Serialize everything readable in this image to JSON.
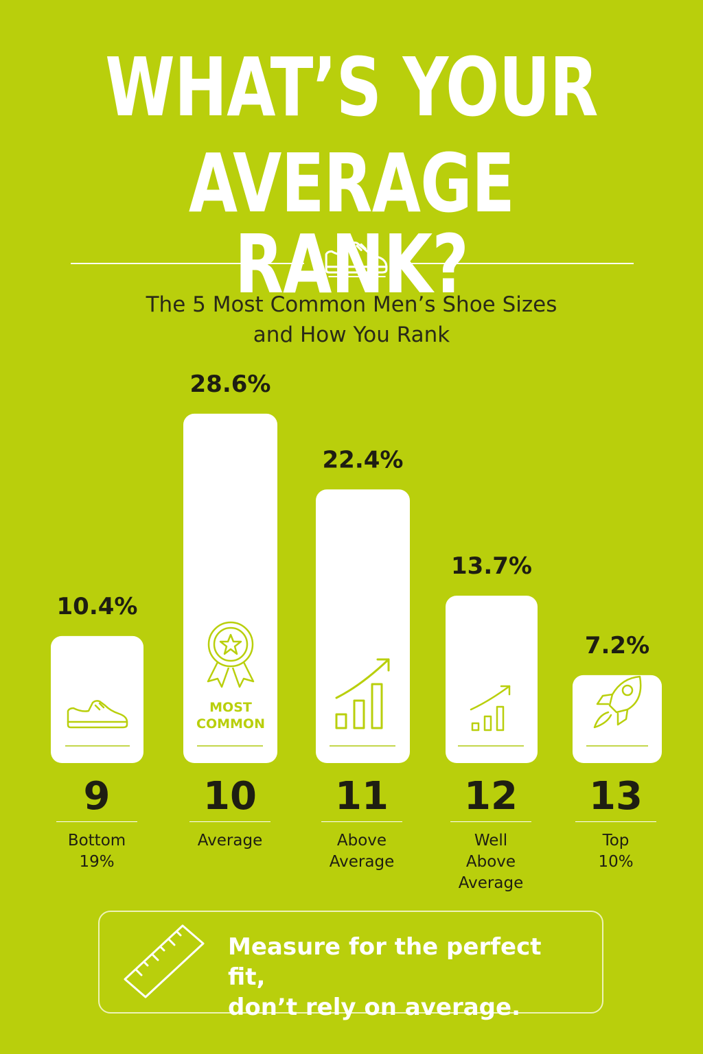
{
  "header": {
    "title_line1": "WHAT’S YOUR",
    "title_line2": "AVERAGE RANK?",
    "subtitle_line1": "The 5 Most Common Men’s Shoe Sizes",
    "subtitle_line2": "and How You Rank"
  },
  "chart_data": {
    "type": "bar",
    "title": "The 5 Most Common Men’s Shoe Sizes and How You Rank",
    "categories": [
      "9",
      "10",
      "11",
      "12",
      "13"
    ],
    "values": [
      10.4,
      28.6,
      22.4,
      13.7,
      7.2
    ],
    "value_labels": [
      "10.4%",
      "28.6%",
      "22.4%",
      "13.7%",
      "7.2%"
    ],
    "rank_labels": [
      "Bottom\n19%",
      "Average",
      "Above\nAverage",
      "Well\nAbove\nAverage",
      "Top\n10%"
    ],
    "bar_icons": [
      "shoe-icon",
      "award-ribbon-icon",
      "growth-chart-icon",
      "growth-chart-icon",
      "rocket-icon"
    ],
    "bar_badge": "MOST\nCOMMON",
    "grid": false,
    "bar_color": "#ffffff"
  },
  "cta": {
    "text": "Measure for the perfect fit,\ndon’t rely on average.",
    "icon": "ruler-icon"
  },
  "colors": {
    "background": "#b9cf0c",
    "accent": "#b9cf0c",
    "text_dark": "#1e1e12",
    "title": "#ffffff"
  }
}
